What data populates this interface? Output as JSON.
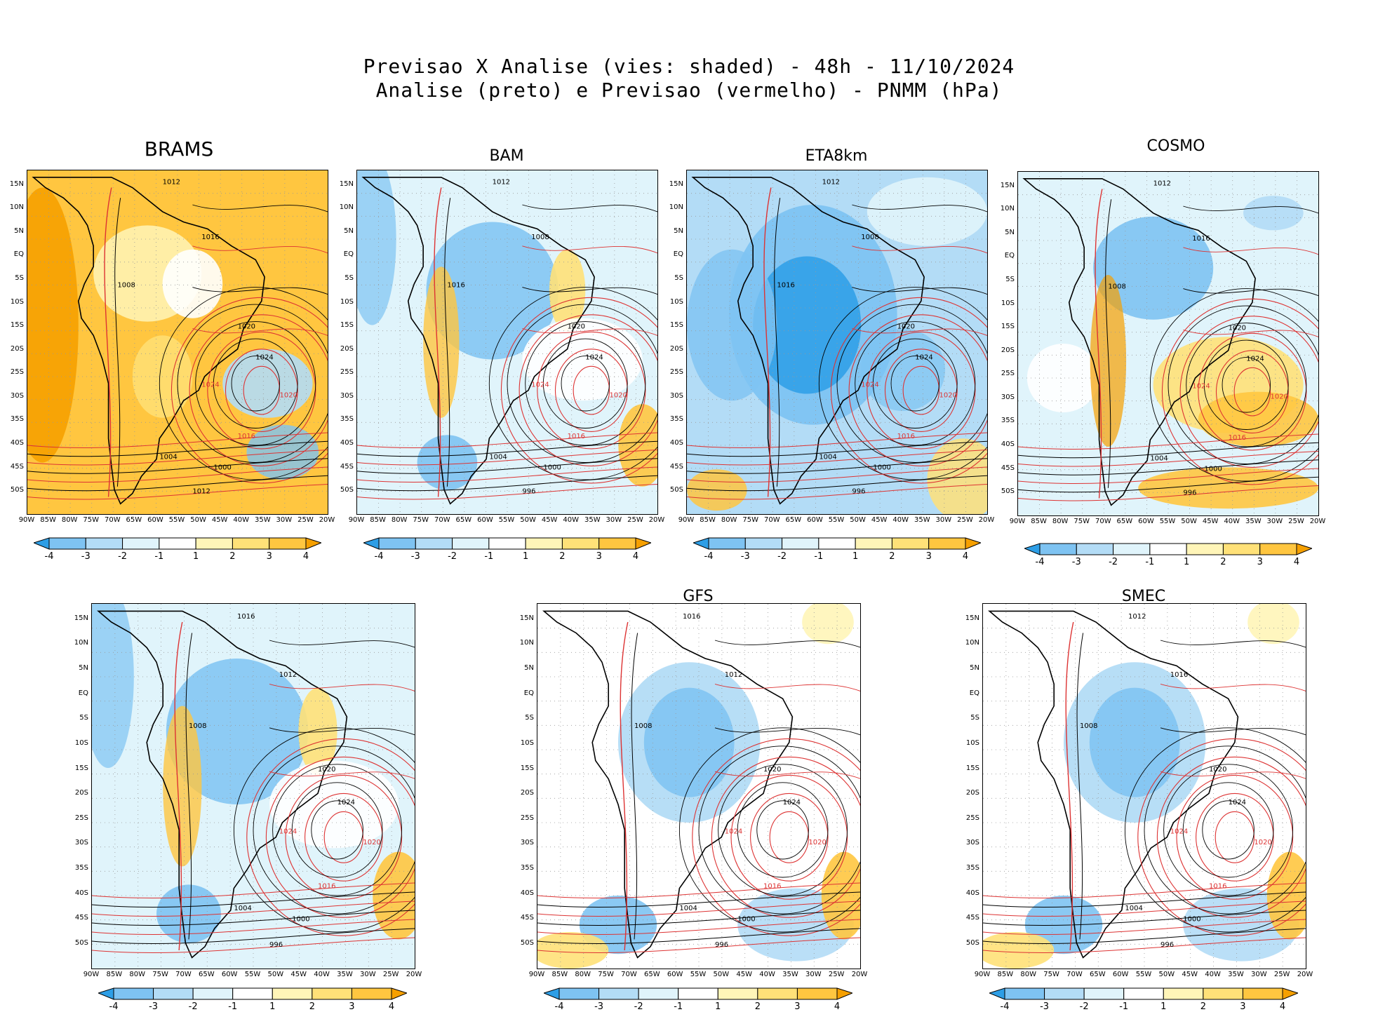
{
  "header": {
    "line1": "Previsao X Analise (vies: shaded) - 48h - 11/10/2024",
    "line2": "Analise (preto) e Previsao (vermelho) - PNMM (hPa)"
  },
  "y_ticks": [
    "15N",
    "10N",
    "5N",
    "EQ",
    "5S",
    "10S",
    "15S",
    "20S",
    "25S",
    "30S",
    "35S",
    "40S",
    "45S",
    "50S"
  ],
  "x_ticks": [
    "90W",
    "85W",
    "80W",
    "75W",
    "70W",
    "65W",
    "60W",
    "55W",
    "50W",
    "45W",
    "40W",
    "35W",
    "30W",
    "25W",
    "20W"
  ],
  "colorbar": {
    "labels": [
      "-4",
      "-3",
      "-2",
      "-1",
      "1",
      "2",
      "3",
      "4"
    ],
    "colors": [
      "#2d9ee6",
      "#7ec3f2",
      "#b3dcf6",
      "#e0f4fb",
      "#ffffff",
      "#fff5b8",
      "#ffe178",
      "#ffc640",
      "#f6a000"
    ]
  },
  "contour_colors": {
    "analysis": "#000000",
    "forecast": "#dd3333"
  },
  "panels": [
    {
      "name": "BRAMS",
      "bias": "warm",
      "labels": [
        "1012",
        "1016",
        "1008",
        "1020",
        "1024",
        "1004",
        "1000",
        "1012",
        "1016",
        "1020",
        "1024"
      ]
    },
    {
      "name": "BAM",
      "bias": "mixed",
      "labels": [
        "1012",
        "1008",
        "1016",
        "1020",
        "1024",
        "1004",
        "1000",
        "996",
        "1016",
        "1020",
        "1024"
      ]
    },
    {
      "name": "ETA8km",
      "bias": "cold",
      "labels": [
        "1012",
        "1008",
        "1016",
        "1020",
        "1024",
        "1004",
        "1000",
        "996",
        "1016",
        "1020",
        "1024"
      ]
    },
    {
      "name": "COSMO",
      "bias": "mixed-warm",
      "labels": [
        "1012",
        "1016",
        "1008",
        "1020",
        "1024",
        "1004",
        "1000",
        "996",
        "1016",
        "1020",
        "1024"
      ]
    },
    {
      "name": "",
      "bias": "mixed",
      "labels": [
        "1016",
        "1012",
        "1008",
        "1020",
        "1024",
        "1004",
        "1000",
        "996",
        "1016",
        "1020",
        "1024"
      ]
    },
    {
      "name": "GFS",
      "bias": "cold-light",
      "labels": [
        "1016",
        "1012",
        "1008",
        "1020",
        "1024",
        "1004",
        "1000",
        "996",
        "1016",
        "1020",
        "1024"
      ]
    },
    {
      "name": "SMEC",
      "bias": "cold-light",
      "labels": [
        "1012",
        "1016",
        "1008",
        "1020",
        "1024",
        "1004",
        "1000",
        "996",
        "1016",
        "1020",
        "1024"
      ]
    }
  ]
}
